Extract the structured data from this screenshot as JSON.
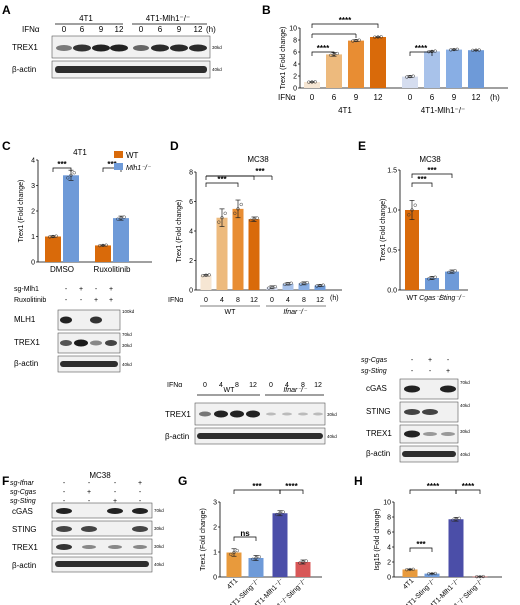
{
  "panels": {
    "A": {
      "letter": "A",
      "title_left": "4T1",
      "title_right": "4T1-Mlh1⁻/⁻",
      "treatment": "IFNα",
      "timepoints": [
        "0",
        "6",
        "9",
        "12",
        "0",
        "6",
        "9",
        "12"
      ],
      "unit": "(h)",
      "rows": [
        {
          "name": "TREX1",
          "size": "30kd"
        },
        {
          "name": "β-actin",
          "size": "40kd"
        }
      ]
    },
    "C": {
      "letter": "C",
      "blot_rows": [
        {
          "name": "sg-Mlh1",
          "marks": [
            "-",
            "+",
            "-",
            "+"
          ]
        },
        {
          "name": "Ruxolitinib",
          "marks": [
            "-",
            "-",
            "+",
            "+"
          ]
        }
      ],
      "bands": [
        {
          "name": "MLH1",
          "size": "100kd"
        },
        {
          "name": "TREX1",
          "size": "70kd"
        },
        {
          "name": "β-actin",
          "size": "40kd"
        }
      ],
      "extra_sizes": [
        "30kd"
      ]
    },
    "D": {
      "letter": "D",
      "treatment": "IFNα",
      "timepoints": [
        "0",
        "4",
        "8",
        "12",
        "0",
        "4",
        "8",
        "12"
      ],
      "unit": "(h)",
      "groups": [
        "WT",
        "Ifnar⁻/⁻"
      ],
      "bands": [
        {
          "name": "TREX1",
          "size": "30kd"
        },
        {
          "name": "β-actin",
          "size": "40kd"
        }
      ]
    },
    "E": {
      "letter": "E",
      "blot_rows": [
        {
          "name": "sg-Cgas",
          "marks": [
            "-",
            "+",
            "-"
          ]
        },
        {
          "name": "sg-Sting",
          "marks": [
            "-",
            "-",
            "+"
          ]
        }
      ],
      "bands": [
        {
          "name": "cGAS",
          "size": "70kd"
        },
        {
          "name": "STING",
          "size": "40kd"
        },
        {
          "name": "TREX1",
          "size": "30kd"
        },
        {
          "name": "β-actin",
          "size": "40kd"
        }
      ]
    },
    "F": {
      "letter": "F",
      "title": "MC38",
      "blot_rows": [
        {
          "name": "sg-Ifnar",
          "marks": [
            "-",
            "-",
            "-",
            "+"
          ]
        },
        {
          "name": "sg-Cgas",
          "marks": [
            "-",
            "+",
            "-",
            "-"
          ]
        },
        {
          "name": "sg-Sting",
          "marks": [
            "-",
            "-",
            "+",
            "-"
          ]
        }
      ],
      "bands": [
        {
          "name": "cGAS",
          "size": "70kd"
        },
        {
          "name": "STING",
          "size": "30kd"
        },
        {
          "name": "TREX1",
          "size": "30kd"
        },
        {
          "name": "β-actin",
          "size": "40kd"
        }
      ]
    }
  },
  "chart_data": [
    {
      "id": "B",
      "letter": "B",
      "type": "bar",
      "ylabel": "Trex1 (Fold change)",
      "ylim": [
        0,
        10
      ],
      "yticks": [
        "0",
        "2",
        "4",
        "6",
        "8",
        "10"
      ],
      "treatment": "IFNα",
      "categories": [
        "0",
        "6",
        "9",
        "12",
        "0",
        "6",
        "9",
        "12"
      ],
      "unit": "(h)",
      "groups": [
        "4T1",
        "4T1-Mlh1⁻/⁻"
      ],
      "values": [
        1.0,
        5.6,
        7.9,
        8.5,
        1.9,
        6.1,
        6.4,
        6.3
      ],
      "errors": [
        0.05,
        0.3,
        0.15,
        0.05,
        0.15,
        0.1,
        0.1,
        0.05
      ],
      "colors": [
        "#f6e6d3",
        "#edba7d",
        "#e88d33",
        "#d96a0a",
        "#d5ddef",
        "#a8c2ea",
        "#88aee4",
        "#6e9ad8"
      ],
      "sig": [
        "****",
        "****",
        "****"
      ]
    },
    {
      "id": "C",
      "type": "bar",
      "title": "4T1",
      "ylabel": "Trex1 (Fold change)",
      "ylim": [
        0,
        4
      ],
      "yticks": [
        "0",
        "1",
        "2",
        "3",
        "4"
      ],
      "categories": [
        "DMSO",
        "Ruxolitinib"
      ],
      "series": [
        {
          "name": "WT",
          "values": [
            1.0,
            0.65
          ],
          "errors": [
            0.03,
            0.02
          ],
          "color": "#d96a0a"
        },
        {
          "name": "Mlh1⁻/⁻",
          "values": [
            3.4,
            1.72
          ],
          "errors": [
            0.2,
            0.08
          ],
          "color": "#6e9ad8"
        }
      ],
      "legend": "top-right",
      "sig": [
        "***",
        "***"
      ]
    },
    {
      "id": "D",
      "type": "bar",
      "title": "MC38",
      "ylabel": "Trex1 (Fold change)",
      "ylim": [
        0,
        8
      ],
      "yticks": [
        "0",
        "2",
        "4",
        "6",
        "8"
      ],
      "values": [
        1.0,
        4.9,
        5.5,
        4.8,
        0.18,
        0.42,
        0.45,
        0.3
      ],
      "errors": [
        0.05,
        0.6,
        0.6,
        0.15,
        0.1,
        0.08,
        0.1,
        0.06
      ],
      "colors": [
        "#f6e6d3",
        "#edba7d",
        "#e88d33",
        "#d96a0a",
        "#d5ddef",
        "#a8c2ea",
        "#88aee4",
        "#6e9ad8"
      ],
      "sig": [
        "***",
        "***"
      ]
    },
    {
      "id": "E",
      "type": "bar",
      "title": "MC38",
      "ylabel": "Trex1 (Fold change)",
      "ylim": [
        0,
        1.5
      ],
      "yticks": [
        "0.0",
        "0.5",
        "1.0",
        "1.5"
      ],
      "categories": [
        "WT",
        "Cgas⁻/⁻",
        "Sting⁻/⁻"
      ],
      "values": [
        1.0,
        0.15,
        0.23
      ],
      "errors": [
        0.12,
        0.02,
        0.02
      ],
      "colors": [
        "#d96a0a",
        "#6e9ad8",
        "#6e9ad8"
      ],
      "sig": [
        "***",
        "***"
      ]
    },
    {
      "id": "G",
      "letter": "G",
      "type": "bar",
      "ylabel": "Trex1 (Fold change)",
      "ylim": [
        0,
        3
      ],
      "yticks": [
        "0",
        "1",
        "2",
        "3"
      ],
      "categories": [
        "4T1",
        "4T1-Sting⁻/⁻",
        "4T1-Mlh1⁻/⁻",
        "4T1-Mlh1⁻/⁻Sting⁻/⁻"
      ],
      "values": [
        0.98,
        0.76,
        2.55,
        0.6
      ],
      "errors": [
        0.15,
        0.1,
        0.1,
        0.08
      ],
      "colors": [
        "#e89a3c",
        "#6e9ad8",
        "#4b4ea8",
        "#d85858"
      ],
      "sig": [
        "***",
        "ns",
        "****"
      ]
    },
    {
      "id": "H",
      "letter": "H",
      "type": "bar",
      "ylabel": "Isg15 (Fold change)",
      "ylim": [
        0,
        10
      ],
      "yticks": [
        "0",
        "2",
        "4",
        "6",
        "8",
        "10"
      ],
      "categories": [
        "4T1",
        "4T1-Sting⁻/⁻",
        "4T1-Mlh1⁻/⁻",
        "4T1-Mlh1⁻/⁻Sting⁻/⁻"
      ],
      "values": [
        1.0,
        0.45,
        7.7,
        0.05
      ],
      "errors": [
        0.05,
        0.04,
        0.25,
        0.02
      ],
      "colors": [
        "#e89a3c",
        "#6e9ad8",
        "#4b4ea8",
        "#d85858"
      ],
      "sig": [
        "****",
        "***",
        "****"
      ]
    }
  ]
}
